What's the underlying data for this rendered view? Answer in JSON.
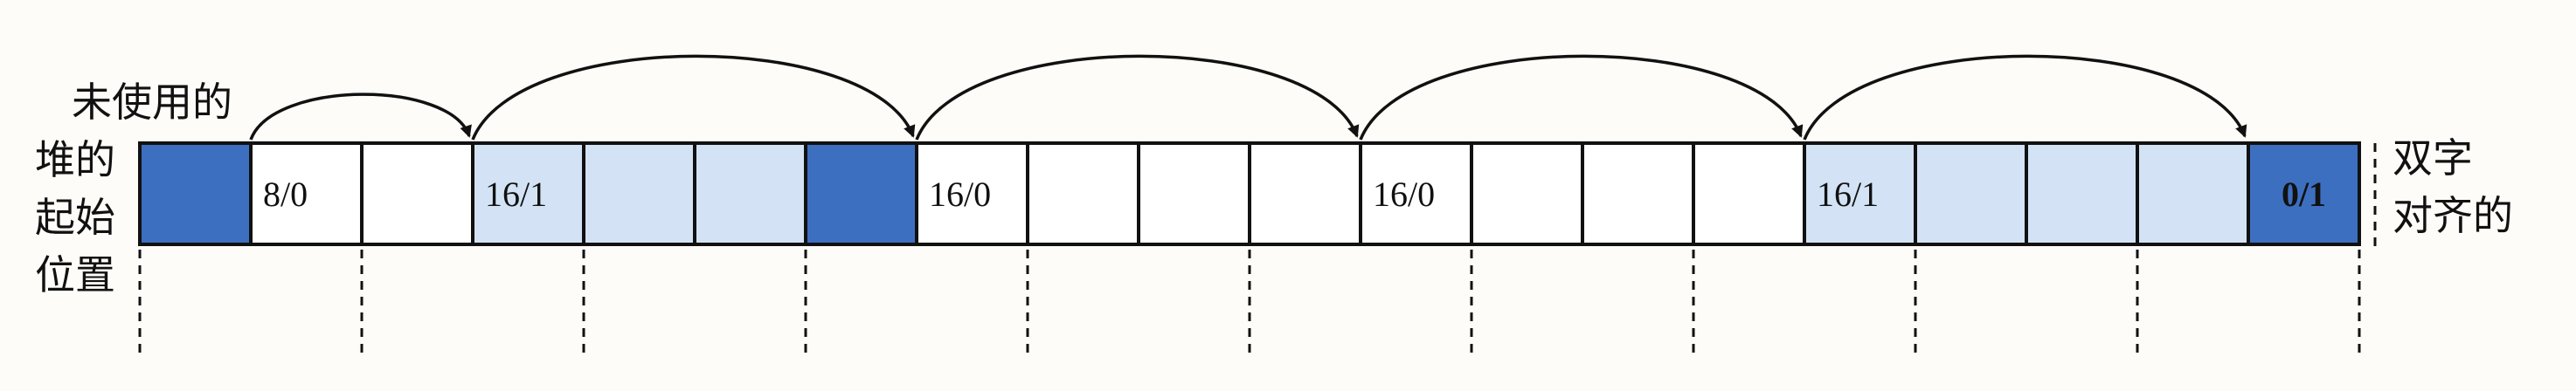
{
  "labels": {
    "heap_start": [
      "未使用的",
      "堆的",
      "起始",
      "位置"
    ],
    "double_word_aligned": [
      "双字",
      "对齐的"
    ]
  },
  "colors": {
    "header_dark": "#3d6fc1",
    "payload_light": "#d3e3f5",
    "free_white": "#ffffff",
    "border": "#111111"
  },
  "words": [
    {
      "kind": "pad",
      "text": ""
    },
    {
      "kind": "free-header",
      "text": "8/0"
    },
    {
      "kind": "free",
      "text": ""
    },
    {
      "kind": "alloc-header",
      "text": "16/1"
    },
    {
      "kind": "alloc-payload",
      "text": ""
    },
    {
      "kind": "alloc-payload",
      "text": ""
    },
    {
      "kind": "pad",
      "text": ""
    },
    {
      "kind": "free-header",
      "text": "16/0"
    },
    {
      "kind": "free",
      "text": ""
    },
    {
      "kind": "free",
      "text": ""
    },
    {
      "kind": "free",
      "text": ""
    },
    {
      "kind": "free-header",
      "text": "16/0"
    },
    {
      "kind": "free",
      "text": ""
    },
    {
      "kind": "free",
      "text": ""
    },
    {
      "kind": "free",
      "text": ""
    },
    {
      "kind": "alloc-header",
      "text": "16/1"
    },
    {
      "kind": "alloc-payload",
      "text": ""
    },
    {
      "kind": "alloc-payload",
      "text": ""
    },
    {
      "kind": "alloc-payload",
      "text": ""
    },
    {
      "kind": "end",
      "text": "0/1"
    }
  ],
  "arrows": [
    [
      1,
      3
    ],
    [
      3,
      7
    ],
    [
      7,
      11
    ],
    [
      11,
      15
    ],
    [
      15,
      19
    ]
  ]
}
